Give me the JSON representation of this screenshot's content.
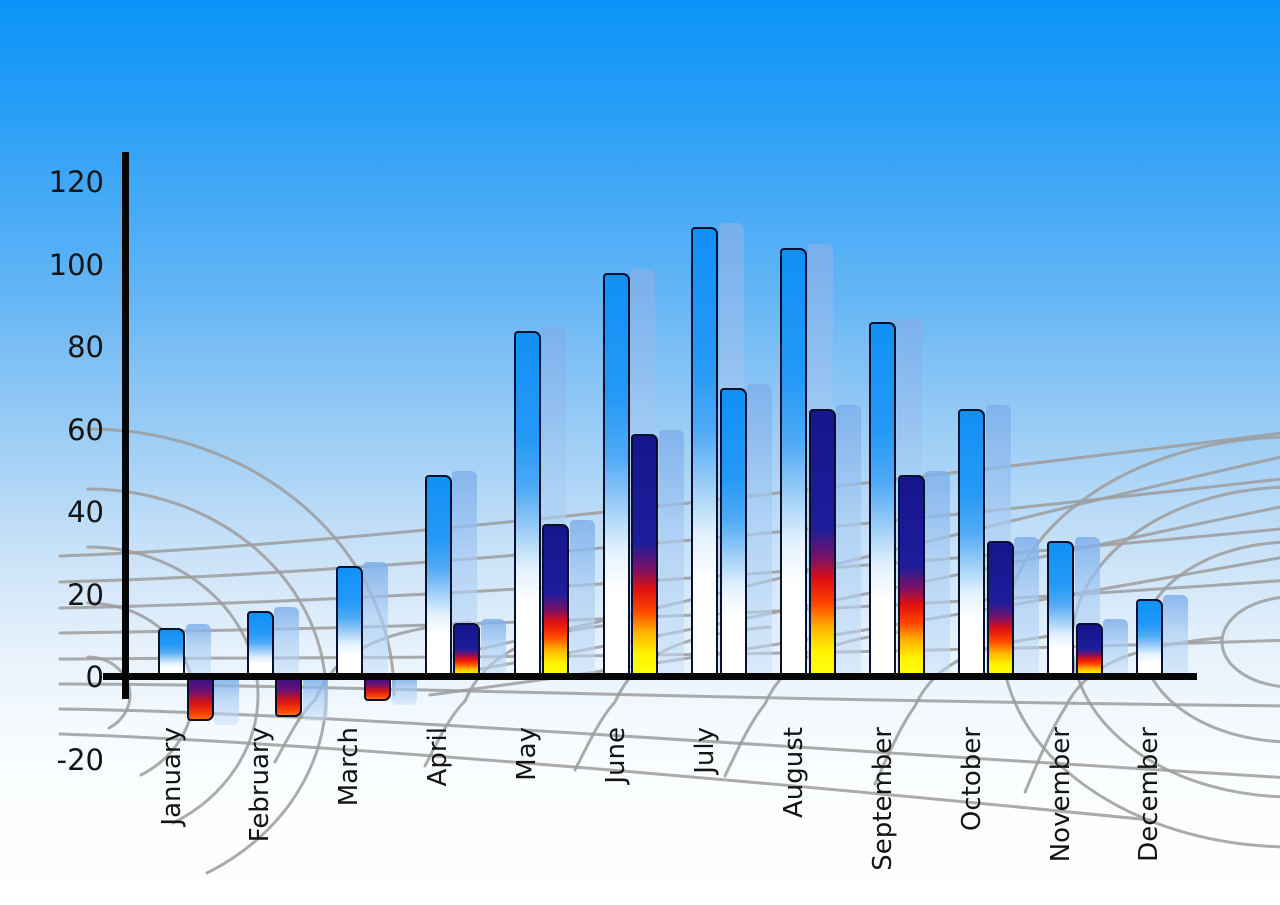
{
  "chart_data": {
    "type": "bar",
    "title": "",
    "xlabel": "",
    "ylabel": "",
    "categories": [
      "January",
      "February",
      "March",
      "April",
      "May",
      "June",
      "July",
      "August",
      "September",
      "October",
      "November",
      "December"
    ],
    "series": [
      {
        "name": "series-1",
        "style": "blue-gradient",
        "values": [
          12,
          16,
          27,
          49,
          84,
          98,
          109,
          104,
          86,
          65,
          33,
          19
        ]
      },
      {
        "name": "series-2",
        "style": "multicolor-gradient",
        "values": [
          -10,
          -9,
          -5,
          13,
          37,
          59,
          70,
          65,
          49,
          33,
          13,
          null
        ],
        "bar_style_overrides": {
          "6": "blue-gradient"
        }
      }
    ],
    "y_ticks": [
      120,
      100,
      80,
      60,
      40,
      20,
      0,
      -20
    ],
    "ylim": [
      -20,
      120
    ],
    "legend": "none",
    "grid": "decorative-perspective-mesh",
    "bar_shadows": "pale-blue-duplicate-right"
  },
  "colors": {
    "background_top": "#0a94f8",
    "background_bottom": "#ffffff",
    "bar_blue": "#1190f5",
    "bar_outline": "#0a102e",
    "multicolor_navy": "#15158e",
    "multicolor_red": "#e01010",
    "multicolor_yellow": "#fff500",
    "shadow_blue": "#a9cbf2",
    "axis": "#060606",
    "grid_line": "#9c9c9c",
    "label_text": "#141414"
  }
}
